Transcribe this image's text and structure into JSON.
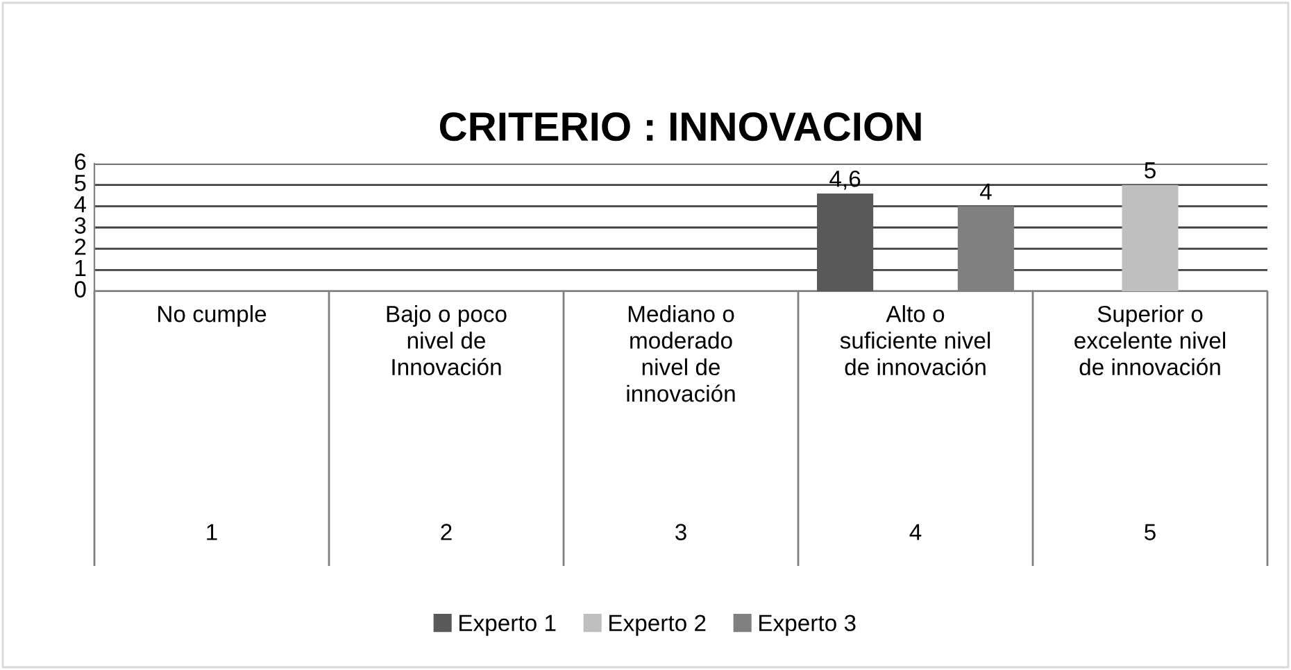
{
  "chart_data": {
    "type": "bar",
    "title": "CRITERIO : INNOVACION",
    "categories": [
      "No cumple",
      "Bajo o poco\nnivel de\nInnovación",
      "Mediano o\nmoderado\nnivel de\ninnovación",
      "Alto o\nsuficiente nivel\nde innovación",
      "Superior o\nexcelente nivel\nde innovación"
    ],
    "annotations": [
      "1",
      "2",
      "3",
      "4",
      "5"
    ],
    "series": [
      {
        "name": "Experto 1",
        "color": "#595959",
        "values": [
          null,
          null,
          null,
          4.6,
          null
        ],
        "value_labels": [
          null,
          null,
          null,
          "4,6",
          null
        ]
      },
      {
        "name": "Experto 2",
        "color": "#bfbfbf",
        "values": [
          null,
          null,
          null,
          null,
          5
        ],
        "value_labels": [
          null,
          null,
          null,
          null,
          "5"
        ]
      },
      {
        "name": "Experto 3",
        "color": "#808080",
        "values": [
          null,
          null,
          null,
          4,
          null
        ],
        "value_labels": [
          null,
          null,
          null,
          "4",
          null
        ]
      }
    ],
    "ylim": [
      0,
      6
    ],
    "yticks": [
      0,
      1,
      2,
      3,
      4,
      5,
      6
    ],
    "grid": "y",
    "legend": "bottom"
  }
}
